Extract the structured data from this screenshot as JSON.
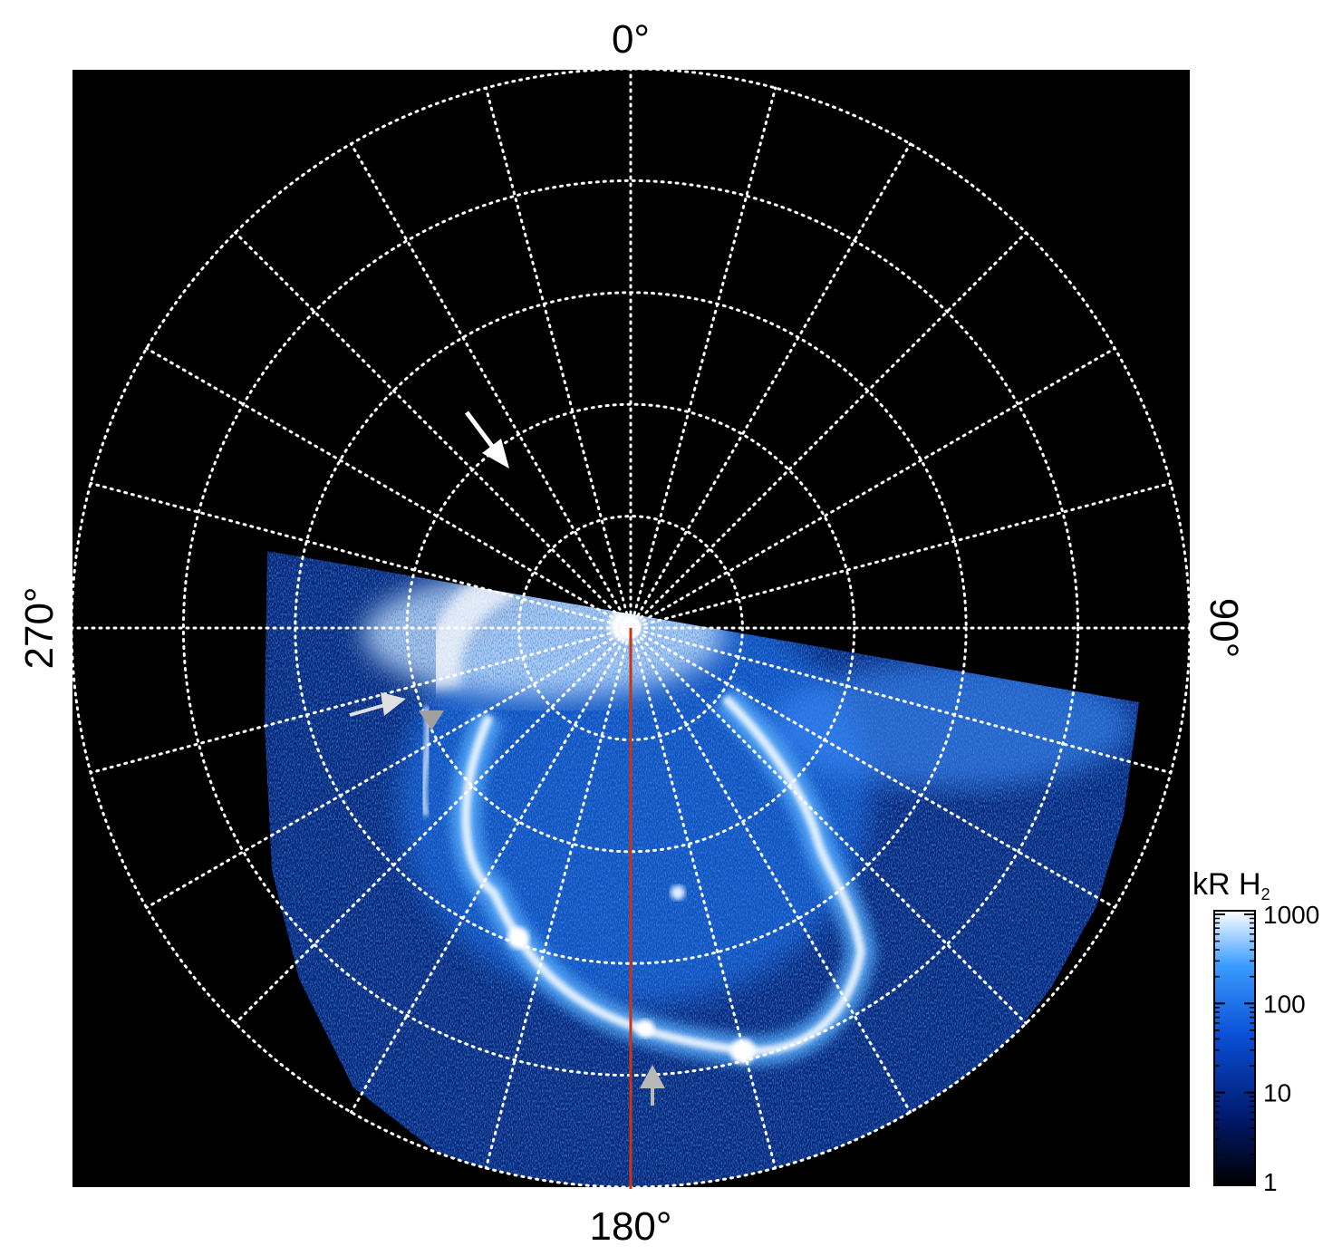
{
  "chart_data": {
    "type": "heatmap",
    "projection": "polar",
    "title": "",
    "azimuth_labels": {
      "top": "0°",
      "right": "90°",
      "bottom": "180°",
      "left": "270°"
    },
    "grid": true,
    "grid_style": "dotted",
    "colorbar": {
      "label": "kR H",
      "label_subscript": "2",
      "scale": "log",
      "range": [
        1,
        1000
      ],
      "ticks": [
        "1000",
        "100",
        "10",
        "1"
      ],
      "tick_values": [
        1000,
        100,
        10,
        1
      ],
      "colors": [
        "#000000",
        "#001a6e",
        "#0a50d8",
        "#3a9cff",
        "#ffffff"
      ],
      "placement": "right"
    },
    "annotations": [
      {
        "kind": "arrow",
        "color": "#ffffff",
        "description": "white arrow"
      },
      {
        "kind": "arrow",
        "color": "#e0e0e0",
        "description": "light grey arrow"
      },
      {
        "kind": "triangle",
        "color": "#a0a0a0",
        "description": "grey triangle"
      },
      {
        "kind": "arrow",
        "color": "#b8b8b8",
        "description": "grey arrow"
      }
    ],
    "meridian_line_color": "#cc3311"
  }
}
